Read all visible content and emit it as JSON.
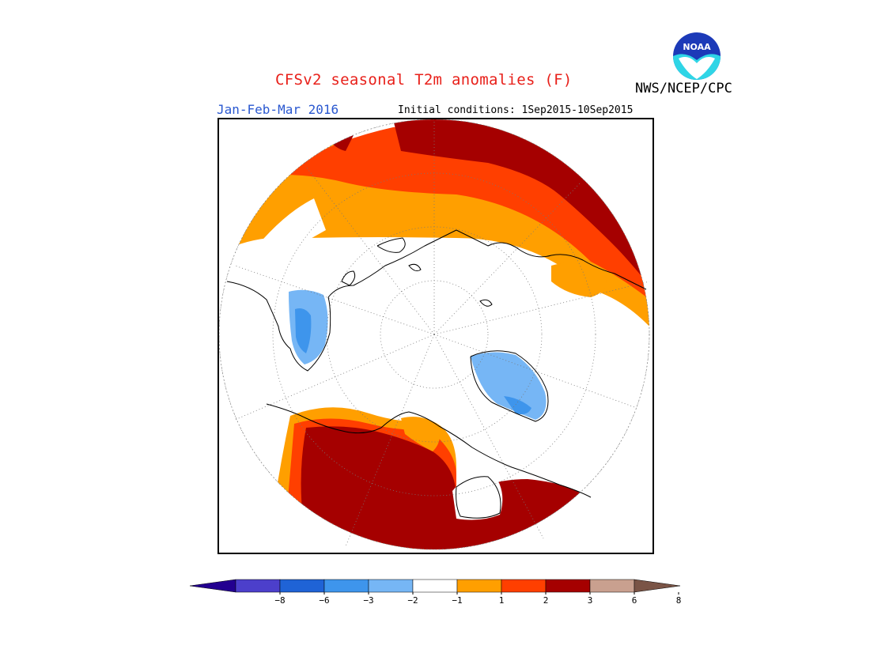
{
  "header": {
    "title": "CFSv2 seasonal T2m anomalies (F)",
    "season": "Jan-Feb-Mar 2016",
    "initial_conditions": "Initial conditions: 1Sep2015-10Sep2015",
    "agency": "NWS/NCEP/CPC",
    "logo_text": "NOAA"
  },
  "map": {
    "projection": "north-polar-stereographic",
    "variable": "2m temperature anomaly",
    "units": "F",
    "regions": [
      {
        "name": "Canada / Alaska interior",
        "category": "3 to 6",
        "color": "#a50000"
      },
      {
        "name": "Northern Russia / Siberia arc",
        "category": "3 to 6",
        "color": "#a50000"
      },
      {
        "name": "Europe",
        "category": "2 to 3",
        "color": "#ff3f00"
      },
      {
        "name": "Greenland",
        "category": "-2 to -1",
        "color": "#76b6f5"
      },
      {
        "name": "Eastern Siberia",
        "category": "-2 to -1",
        "color": "#76b6f5"
      }
    ]
  },
  "colorbar": {
    "labels": [
      "−8",
      "−6",
      "−3",
      "−2",
      "−1",
      "1",
      "2",
      "3",
      "6",
      "8"
    ],
    "colors": [
      "#230090",
      "#4c3fcb",
      "#1f63d6",
      "#3e95ec",
      "#76b6f5",
      "#ffffff",
      "#ff9f00",
      "#ff3f00",
      "#a50000",
      "#c9a08f",
      "#7a5446"
    ]
  }
}
